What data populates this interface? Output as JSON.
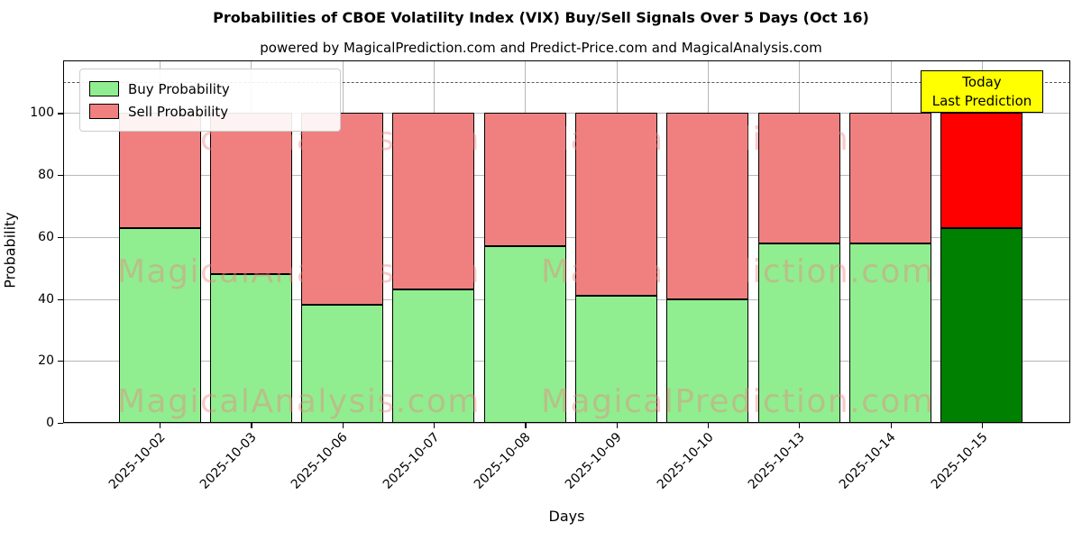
{
  "title": "Probabilities of CBOE Volatility Index (VIX) Buy/Sell Signals Over 5 Days (Oct 16)",
  "subtitle": "powered by MagicalPrediction.com and Predict-Price.com and MagicalAnalysis.com",
  "chart_data": {
    "type": "bar",
    "stacked": true,
    "title": "Probabilities of CBOE Volatility Index (VIX) Buy/Sell Signals Over 5 Days (Oct 16)",
    "xlabel": "Days",
    "ylabel": "Probability",
    "categories": [
      "2025-10-02",
      "2025-10-03",
      "2025-10-06",
      "2025-10-07",
      "2025-10-08",
      "2025-10-09",
      "2025-10-10",
      "2025-10-13",
      "2025-10-14",
      "2025-10-15"
    ],
    "series": [
      {
        "name": "Buy Probability",
        "color": "#90EE90",
        "today_color": "#008000",
        "values": [
          63,
          48,
          38,
          43,
          57,
          41,
          40,
          58,
          58,
          63
        ]
      },
      {
        "name": "Sell Probability",
        "color": "#F08080",
        "today_color": "#FF0000",
        "values": [
          37,
          52,
          62,
          57,
          43,
          59,
          60,
          42,
          42,
          37
        ]
      }
    ],
    "today_index": 9,
    "yticks": [
      0,
      20,
      40,
      60,
      80,
      100
    ],
    "ylim": [
      0,
      117
    ],
    "dashed_line_y": 110,
    "grid": true,
    "legend_position": "upper-left",
    "bar_edge_color": "#000000"
  },
  "annotation": {
    "line1": "Today",
    "line2": "Last Prediction",
    "bg_color": "#FFFF00"
  },
  "watermarks": {
    "left_text": "MagicalAnalysis.com",
    "right_text": "MagicalPrediction.com"
  }
}
